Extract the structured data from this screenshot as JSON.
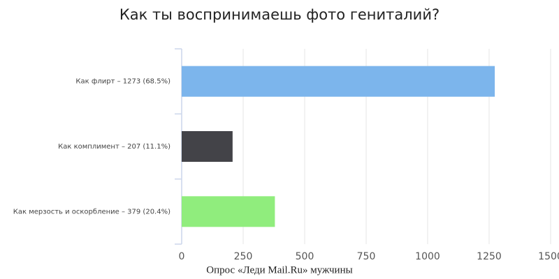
{
  "chart_data": {
    "type": "hbar",
    "title": "Как ты воспринимаешь фото гениталий?",
    "caption": "Опрос «Леди Mail.Ru» мужчины",
    "categories": [
      "Как флирт – 1273 (68.5%)",
      "Как комплимент – 207 (11.1%)",
      "Как мерзость и оскорбление – 379 (20.4%)"
    ],
    "values": [
      1273,
      207,
      379
    ],
    "colors": [
      "#7cb5ec",
      "#434348",
      "#90ed7d"
    ],
    "xlim": [
      0,
      1500
    ],
    "xticks": [
      0,
      250,
      500,
      750,
      1000,
      1250,
      1500
    ],
    "grid": true
  }
}
